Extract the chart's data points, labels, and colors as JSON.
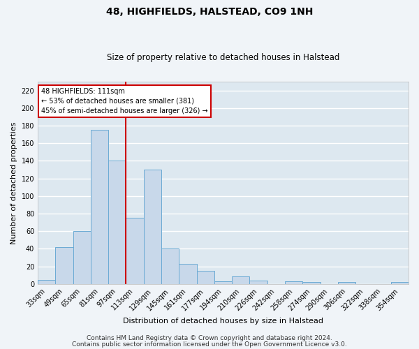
{
  "title": "48, HIGHFIELDS, HALSTEAD, CO9 1NH",
  "subtitle": "Size of property relative to detached houses in Halstead",
  "xlabel": "Distribution of detached houses by size in Halstead",
  "ylabel": "Number of detached properties",
  "categories": [
    "33sqm",
    "49sqm",
    "65sqm",
    "81sqm",
    "97sqm",
    "113sqm",
    "129sqm",
    "145sqm",
    "161sqm",
    "177sqm",
    "194sqm",
    "210sqm",
    "226sqm",
    "242sqm",
    "258sqm",
    "274sqm",
    "290sqm",
    "306sqm",
    "322sqm",
    "338sqm",
    "354sqm"
  ],
  "values": [
    5,
    42,
    60,
    175,
    140,
    75,
    130,
    40,
    23,
    15,
    3,
    9,
    4,
    0,
    3,
    2,
    0,
    2,
    0,
    0,
    2
  ],
  "bar_color": "#c8d8ea",
  "bar_edge_color": "#6aaad4",
  "vline_x": 4.5,
  "vline_color": "#cc0000",
  "annotation_text": "48 HIGHFIELDS: 111sqm\n← 53% of detached houses are smaller (381)\n45% of semi-detached houses are larger (326) →",
  "annotation_box_facecolor": "#ffffff",
  "annotation_box_edgecolor": "#cc0000",
  "footer_line1": "Contains HM Land Registry data © Crown copyright and database right 2024.",
  "footer_line2": "Contains public sector information licensed under the Open Government Licence v3.0.",
  "ylim": [
    0,
    230
  ],
  "yticks": [
    0,
    20,
    40,
    60,
    80,
    100,
    120,
    140,
    160,
    180,
    200,
    220
  ],
  "fig_background": "#f0f4f8",
  "ax_background": "#dde8f0",
  "grid_color": "#ffffff",
  "title_fontsize": 10,
  "subtitle_fontsize": 8.5,
  "ylabel_fontsize": 8,
  "xlabel_fontsize": 8,
  "tick_fontsize": 7,
  "footer_fontsize": 6.5
}
